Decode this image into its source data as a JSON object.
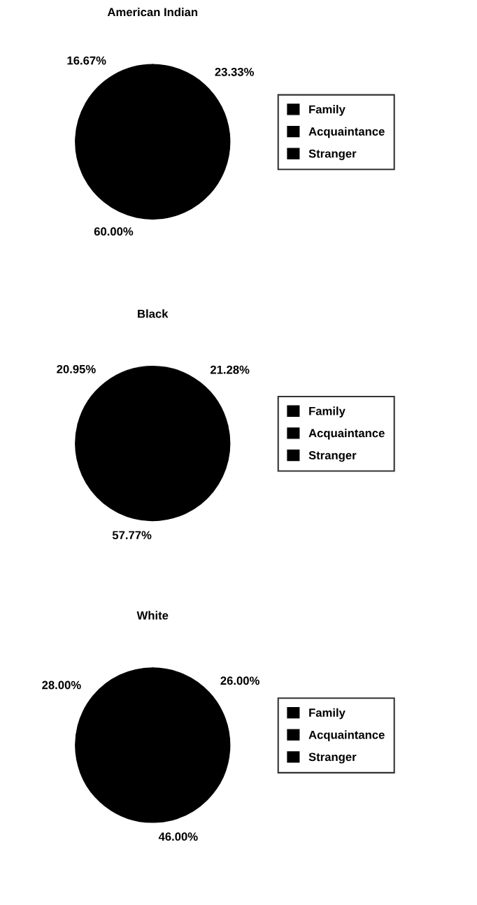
{
  "chart_data": [
    {
      "type": "pie",
      "title": "American Indian",
      "categories": [
        "Family",
        "Acquaintance",
        "Stranger"
      ],
      "values": [
        23.33,
        60.0,
        16.67
      ],
      "value_labels": [
        "23.33%",
        "60.00%",
        "16.67%"
      ],
      "colors": [
        "#000000",
        "#000000",
        "#000000"
      ],
      "legend": "right"
    },
    {
      "type": "pie",
      "title": "Black",
      "categories": [
        "Family",
        "Acquaintance",
        "Stranger"
      ],
      "values": [
        21.28,
        57.77,
        20.95
      ],
      "value_labels": [
        "21.28%",
        "57.77%",
        "20.95%"
      ],
      "colors": [
        "#000000",
        "#000000",
        "#000000"
      ],
      "legend": "right"
    },
    {
      "type": "pie",
      "title": "White",
      "categories": [
        "Family",
        "Acquaintance",
        "Stranger"
      ],
      "values": [
        26.0,
        46.0,
        28.0
      ],
      "value_labels": [
        "26.00%",
        "46.00%",
        "28.00%"
      ],
      "colors": [
        "#000000",
        "#000000",
        "#000000"
      ],
      "legend": "right"
    }
  ]
}
